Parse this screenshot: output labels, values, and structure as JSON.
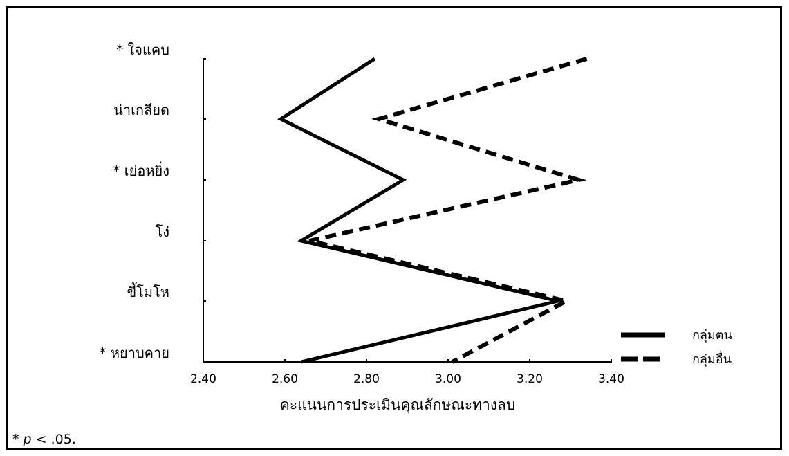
{
  "chart_data": {
    "type": "line",
    "orientation": "horizontal",
    "categories": [
      "* ใจแคบ",
      "น่าเกลียด",
      "* เย่อหยิ่ง",
      "โง่",
      "ขี้โมโห",
      "* หยาบคาย"
    ],
    "series": [
      {
        "name": "กลุ่มตน",
        "values": [
          2.82,
          2.59,
          2.89,
          2.64,
          3.27,
          2.64
        ],
        "style": "solid",
        "color": "#000000"
      },
      {
        "name": "กลุ่มอื่น",
        "values": [
          3.34,
          2.83,
          3.32,
          2.66,
          3.29,
          3.01
        ],
        "style": "dashed",
        "color": "#000000"
      }
    ],
    "xlabel": "คะแนนการประเมินคุณลักษณะทางลบ",
    "xlim": [
      2.4,
      3.4
    ],
    "xticks": [
      "2.40",
      "2.60",
      "2.80",
      "3.00",
      "3.20",
      "3.40"
    ],
    "legend_position": "bottom-right",
    "grid": false
  },
  "footnote": {
    "prefix": "* ",
    "italic": "p",
    "suffix": " < .05."
  }
}
